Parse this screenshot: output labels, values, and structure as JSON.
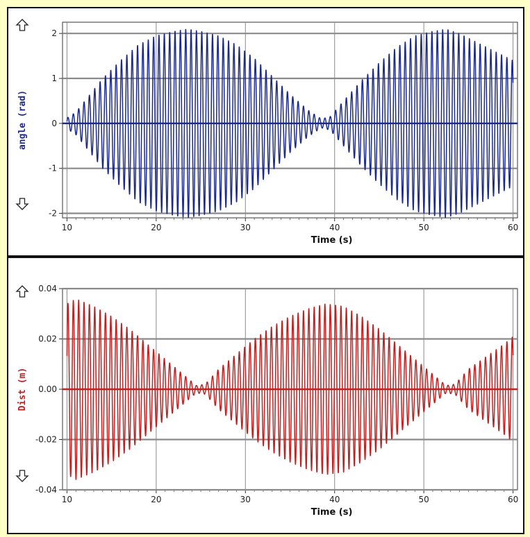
{
  "chart_data": [
    {
      "type": "line",
      "series": [
        {
          "color": "#1c2a8c",
          "oscillation_period_s": 0.6,
          "envelope": {
            "x": [
              10,
              11,
              12,
              14,
              16,
              18,
              20,
              22,
              23.5,
              25,
              27,
              29,
              31,
              33,
              35,
              37,
              38.5,
              39.5,
              41,
              43,
              45,
              47,
              49,
              51,
              52.5,
              54,
              56,
              58,
              60
            ],
            "y": [
              0.12,
              0.25,
              0.5,
              1.0,
              1.4,
              1.75,
              1.95,
              2.05,
              2.1,
              2.05,
              1.95,
              1.75,
              1.45,
              1.05,
              0.65,
              0.3,
              0.1,
              0.15,
              0.5,
              0.95,
              1.35,
              1.7,
              1.95,
              2.05,
              2.1,
              2.0,
              1.8,
              1.6,
              1.4
            ]
          }
        }
      ],
      "xlabel": "Time (s)",
      "ylabel": "angle (rad)",
      "xlim": [
        9.5,
        60.5
      ],
      "ylim": [
        -2.1,
        2.25
      ],
      "xticks": [
        "10",
        "20",
        "30",
        "40",
        "50",
        "60"
      ],
      "yticks": [
        "2",
        "1",
        "0",
        "-1",
        "-2"
      ],
      "grid": true
    },
    {
      "type": "line",
      "series": [
        {
          "color": "#c02020",
          "oscillation_period_s": 0.6,
          "envelope": {
            "x": [
              10,
              11,
              13,
              15,
              17,
              19,
              21,
              23,
              24.5,
              25.5,
              27,
              29,
              31,
              33,
              35,
              37,
              39,
              41,
              43,
              45,
              47,
              49,
              51,
              52.5,
              53.5,
              55,
              57,
              59,
              60
            ],
            "y": [
              0.034,
              0.036,
              0.033,
              0.029,
              0.024,
              0.018,
              0.012,
              0.006,
              0.0015,
              0.002,
              0.008,
              0.014,
              0.02,
              0.025,
              0.029,
              0.032,
              0.034,
              0.033,
              0.029,
              0.024,
              0.018,
              0.012,
              0.006,
              0.0015,
              0.002,
              0.008,
              0.013,
              0.018,
              0.021
            ]
          }
        }
      ],
      "xlabel": "Time (s)",
      "ylabel": "Dist (m)",
      "xlim": [
        9.5,
        60.5
      ],
      "ylim": [
        -0.04,
        0.04
      ],
      "xticks": [
        "10",
        "20",
        "30",
        "40",
        "50",
        "60"
      ],
      "yticks": [
        "0.04",
        "0.02",
        "0.00",
        "-0.02",
        "-0.04"
      ],
      "grid": true
    }
  ]
}
